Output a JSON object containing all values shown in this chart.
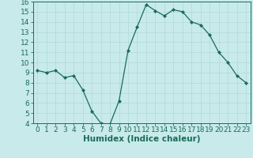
{
  "x": [
    0,
    1,
    2,
    3,
    4,
    5,
    6,
    7,
    8,
    9,
    10,
    11,
    12,
    13,
    14,
    15,
    16,
    17,
    18,
    19,
    20,
    21,
    22,
    23
  ],
  "y": [
    9.2,
    9.0,
    9.2,
    8.5,
    8.7,
    7.3,
    5.2,
    4.0,
    3.9,
    6.2,
    11.2,
    13.5,
    15.7,
    15.1,
    14.6,
    15.2,
    15.0,
    14.0,
    13.7,
    12.7,
    11.0,
    10.0,
    8.7,
    8.0
  ],
  "line_color": "#1a6b5a",
  "marker": "D",
  "marker_size": 2.0,
  "bg_color": "#c8eaea",
  "grid_color": "#b0d8d8",
  "xlabel": "Humidex (Indice chaleur)",
  "ylim": [
    4,
    16
  ],
  "xlim": [
    -0.5,
    23.5
  ],
  "yticks": [
    4,
    5,
    6,
    7,
    8,
    9,
    10,
    11,
    12,
    13,
    14,
    15,
    16
  ],
  "xticks": [
    0,
    1,
    2,
    3,
    4,
    5,
    6,
    7,
    8,
    9,
    10,
    11,
    12,
    13,
    14,
    15,
    16,
    17,
    18,
    19,
    20,
    21,
    22,
    23
  ],
  "tick_color": "#1a6b5a",
  "label_color": "#1a6b5a",
  "tick_fontsize": 6.5,
  "xlabel_fontsize": 7.5,
  "linewidth": 0.9
}
